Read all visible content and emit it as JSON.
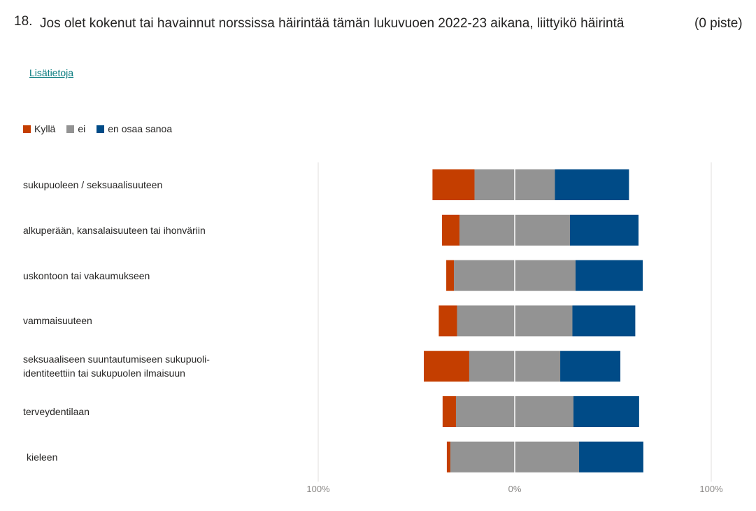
{
  "question": {
    "number": "18.",
    "title": "Jos olet kokenut tai havainnut norssissa häirintää tämän lukuvuoen 2022-23 aikana, liittyikö häirintä",
    "points": "(0 piste)",
    "more_link": "Lisätietoja"
  },
  "colors": {
    "kylla": "#c43e00",
    "ei": "#939393",
    "eos": "#004b87"
  },
  "chart_data": {
    "type": "bar",
    "orientation": "horizontal-diverging-stacked",
    "legend": [
      "Kyllä",
      "ei",
      "en osaa sanoa"
    ],
    "legend_placement": "top-left",
    "categories": [
      "sukupuoleen / seksuaalisuuteen",
      "alkuperään, kansalaisuuteen tai ihonväriin",
      "uskontoon tai vakaumukseen",
      "vammaisuuteen",
      "seksuaaliseen suuntautumiseen sukupuoli-identiteettiin tai sukupuolen ilmaisuun",
      "terveydentilaan",
      "kieleen"
    ],
    "series": [
      {
        "name": "Kyllä",
        "values": [
          21.4,
          8.9,
          3.9,
          9.3,
          23.1,
          6.8,
          1.8
        ]
      },
      {
        "name": "ei",
        "values": [
          40.9,
          56.2,
          61.9,
          58.7,
          46.3,
          59.8,
          65.5
        ]
      },
      {
        "name": "en osaa sanoa",
        "values": [
          37.7,
          34.9,
          34.2,
          32.0,
          30.6,
          33.4,
          32.7
        ]
      }
    ],
    "xlim": [
      -100,
      100
    ],
    "tick_labels": [
      "100%",
      "0%",
      "100%"
    ],
    "grid": true
  }
}
